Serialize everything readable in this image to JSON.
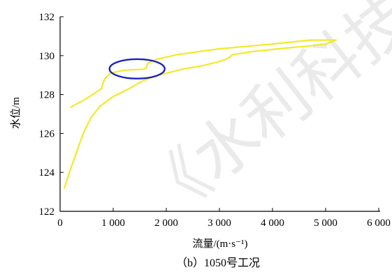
{
  "chart_data": {
    "type": "line",
    "xlabel": "流量/(m·s⁻¹)",
    "ylabel": "水位/m",
    "xlim": [
      0,
      6000
    ],
    "ylim": [
      122,
      132
    ],
    "x_ticks": [
      0,
      1000,
      2000,
      3000,
      4000,
      5000,
      6000
    ],
    "x_tick_labels": [
      "0",
      "1 000",
      "2 000",
      "3 000",
      "4 000",
      "5 000",
      "6 000"
    ],
    "y_ticks": [
      122,
      124,
      126,
      128,
      130,
      132
    ],
    "y_tick_labels": [
      "122",
      "124",
      "126",
      "128",
      "130",
      "132"
    ],
    "grid": false,
    "series": [
      {
        "color": "#f2ea27",
        "points": [
          [
            80,
            123.2
          ],
          [
            200,
            124.2
          ],
          [
            330,
            125.2
          ],
          [
            450,
            126.1
          ],
          [
            580,
            126.8
          ],
          [
            750,
            127.4
          ],
          [
            1000,
            127.9
          ],
          [
            1300,
            128.3
          ],
          [
            1550,
            128.7
          ],
          [
            1850,
            129.0
          ],
          [
            2300,
            129.3
          ],
          [
            2700,
            129.5
          ],
          [
            3000,
            129.7
          ],
          [
            3150,
            129.85
          ],
          [
            3250,
            130.05
          ],
          [
            3600,
            130.2
          ],
          [
            4100,
            130.35
          ],
          [
            4700,
            130.5
          ],
          [
            5000,
            130.6
          ],
          [
            5200,
            130.8
          ],
          [
            4700,
            130.8
          ],
          [
            4000,
            130.6
          ],
          [
            3000,
            130.35
          ],
          [
            2200,
            130.05
          ],
          [
            1800,
            129.8
          ],
          [
            1650,
            129.6
          ],
          [
            1620,
            129.35
          ],
          [
            1550,
            129.3
          ],
          [
            1200,
            129.25
          ],
          [
            950,
            129.1
          ],
          [
            850,
            128.85
          ],
          [
            800,
            128.55
          ],
          [
            780,
            128.3
          ],
          [
            500,
            127.8
          ],
          [
            200,
            127.35
          ]
        ]
      }
    ],
    "annotations": [
      {
        "type": "ellipse",
        "color": "#1b24b8",
        "cx": 1450,
        "cy": 129.32,
        "rx": 520,
        "ry": 0.5
      }
    ]
  },
  "caption": "（b）1050号工况",
  "watermark": "《水利科技（中英文"
}
